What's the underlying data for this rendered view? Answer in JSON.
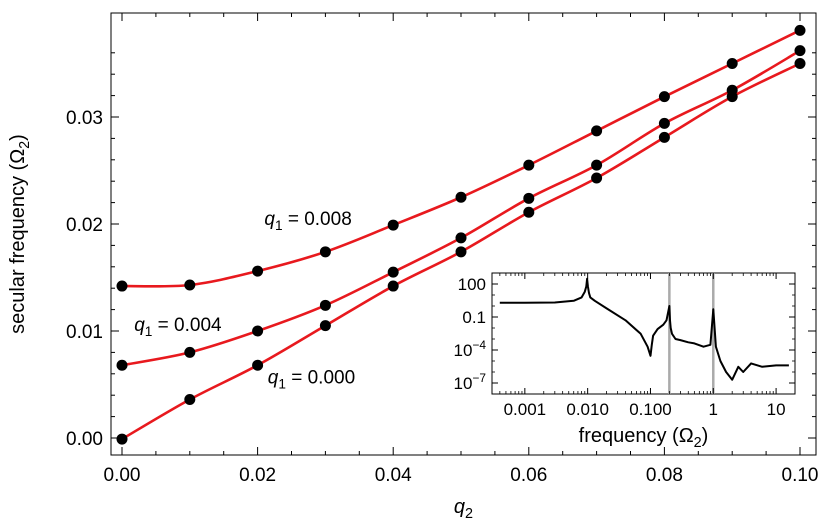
{
  "chart_data": [
    {
      "type": "line",
      "title": "",
      "xlabel": "q2",
      "ylabel": "secular frequency (Ω2)",
      "xlim": [
        0,
        0.1
      ],
      "ylim": [
        0,
        0.038
      ],
      "x_ticks": [
        0.0,
        0.02,
        0.04,
        0.06,
        0.08,
        0.1
      ],
      "x_tick_labels": [
        "0.00",
        "0.02",
        "0.04",
        "0.06",
        "0.08",
        "0.10"
      ],
      "y_ticks": [
        0.0,
        0.01,
        0.02,
        0.03
      ],
      "y_tick_labels": [
        "0.00",
        "0.01",
        "0.02",
        "0.03"
      ],
      "grid": false,
      "series": [
        {
          "name": "q1 = 0.008",
          "x": [
            0,
            0.01,
            0.02,
            0.03,
            0.04,
            0.05,
            0.06,
            0.07,
            0.08,
            0.09,
            0.1
          ],
          "y": [
            0.0142,
            0.0143,
            0.0156,
            0.0174,
            0.0199,
            0.0225,
            0.0255,
            0.0287,
            0.0319,
            0.035,
            0.0381
          ],
          "line_color": "#e8191e",
          "marker_color": "#000000"
        },
        {
          "name": "q1 = 0.004",
          "x": [
            0,
            0.01,
            0.02,
            0.03,
            0.04,
            0.05,
            0.06,
            0.07,
            0.08,
            0.09,
            0.1
          ],
          "y": [
            0.0068,
            0.008,
            0.01,
            0.0124,
            0.0155,
            0.0187,
            0.0224,
            0.0255,
            0.0294,
            0.0325,
            0.0362
          ],
          "line_color": "#e8191e",
          "marker_color": "#000000"
        },
        {
          "name": "q1 = 0.000",
          "x": [
            0,
            0.01,
            0.02,
            0.03,
            0.04,
            0.05,
            0.06,
            0.07,
            0.08,
            0.09,
            0.1
          ],
          "y": [
            -0.0001,
            0.0036,
            0.0068,
            0.0105,
            0.0142,
            0.0174,
            0.0211,
            0.0243,
            0.0281,
            0.0319,
            0.035
          ],
          "line_color": "#e8191e",
          "marker_color": "#000000"
        }
      ],
      "annotations": [
        {
          "text": "q1 = 0.008",
          "x": 0.021,
          "y": 0.0199
        },
        {
          "text": "q1 = 0.004",
          "x": 0.0018,
          "y": 0.01
        },
        {
          "text": "q1 = 0.000",
          "x": 0.0215,
          "y": 0.0051
        }
      ]
    },
    {
      "type": "line",
      "placement": "inset, lower-right",
      "title": "",
      "xlabel": "frequency (Ω2)",
      "ylabel": "",
      "x_scale": "log",
      "y_scale": "log",
      "xlim": [
        0.0003,
        20
      ],
      "ylim": [
        1e-08,
        1000
      ],
      "x_ticks": [
        0.001,
        0.01,
        0.1,
        1,
        10
      ],
      "x_tick_labels": [
        "0.001",
        "0.010",
        "0.100",
        "1",
        "10"
      ],
      "y_ticks": [
        100,
        0.1,
        0.0001,
        1e-07
      ],
      "y_tick_labels": [
        "100",
        "0.1",
        "10^-4",
        "10^-7"
      ],
      "vertical_lines": {
        "x": [
          0.2,
          1.0
        ],
        "color": "#aaaaaa"
      },
      "series": [
        {
          "color": "#000000",
          "x": [
            0.0004,
            0.001,
            0.003,
            0.006,
            0.008,
            0.009,
            0.0095,
            0.0098,
            0.0101,
            0.0105,
            0.011,
            0.013,
            0.02,
            0.04,
            0.07,
            0.09,
            0.1,
            0.105,
            0.11,
            0.13,
            0.16,
            0.18,
            0.2,
            0.205,
            0.21,
            0.22,
            0.25,
            0.3,
            0.4,
            0.5,
            0.7,
            0.9,
            1.0,
            1.1,
            1.3,
            1.6,
            2.0,
            2.5,
            3,
            4,
            6,
            10,
            16
          ],
          "y": [
            2,
            2,
            2.1,
            3,
            6,
            20,
            60,
            300,
            60,
            15,
            6,
            3,
            0.6,
            0.05,
            0.003,
            0.0002,
            3e-05,
            0.0003,
            0.002,
            0.008,
            0.02,
            0.05,
            1,
            0.05,
            0.01,
            0.003,
            0.001,
            0.0008,
            0.0005,
            0.0004,
            0.0002,
            0.0003,
            0.5,
            0.0002,
            1e-05,
            1e-06,
            2e-07,
            3e-06,
            1e-06,
            6e-06,
            3e-06,
            4e-06,
            4e-06
          ]
        }
      ]
    }
  ]
}
